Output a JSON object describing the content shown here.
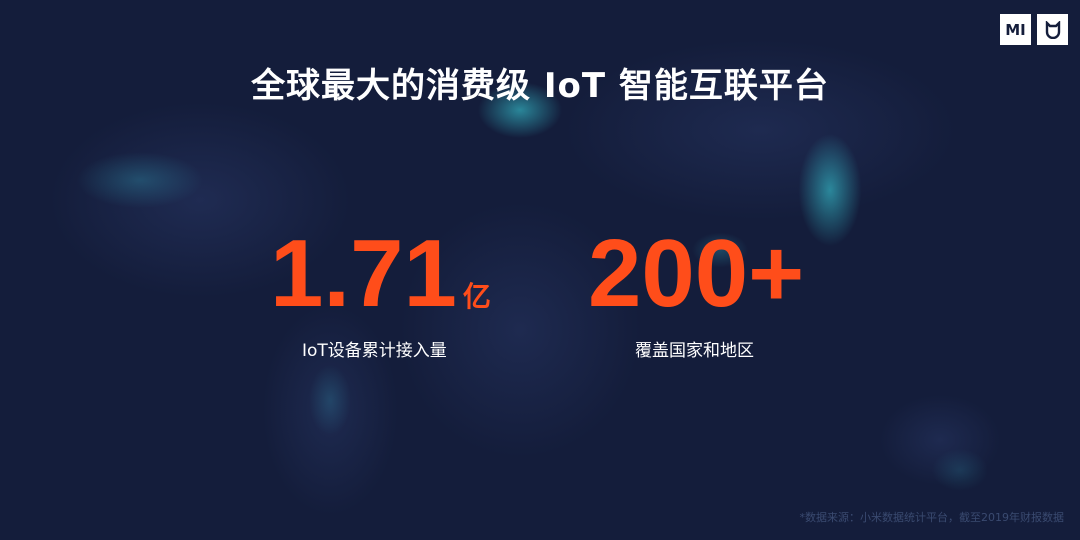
{
  "title": "全球最大的消费级 IoT 智能互联平台",
  "logos": [
    "MI",
    "米家"
  ],
  "stats": [
    {
      "value": "1.71",
      "unit": "亿",
      "label": "IoT设备累计接入量"
    },
    {
      "value": "200+",
      "unit": "",
      "label": "覆盖国家和地区"
    }
  ],
  "footnote": "*数据来源：小米数据统计平台，截至2019年财报数据",
  "colors": {
    "accent": "#ff4d1a",
    "background": "#141d3b",
    "glow": "#3cdce6"
  }
}
